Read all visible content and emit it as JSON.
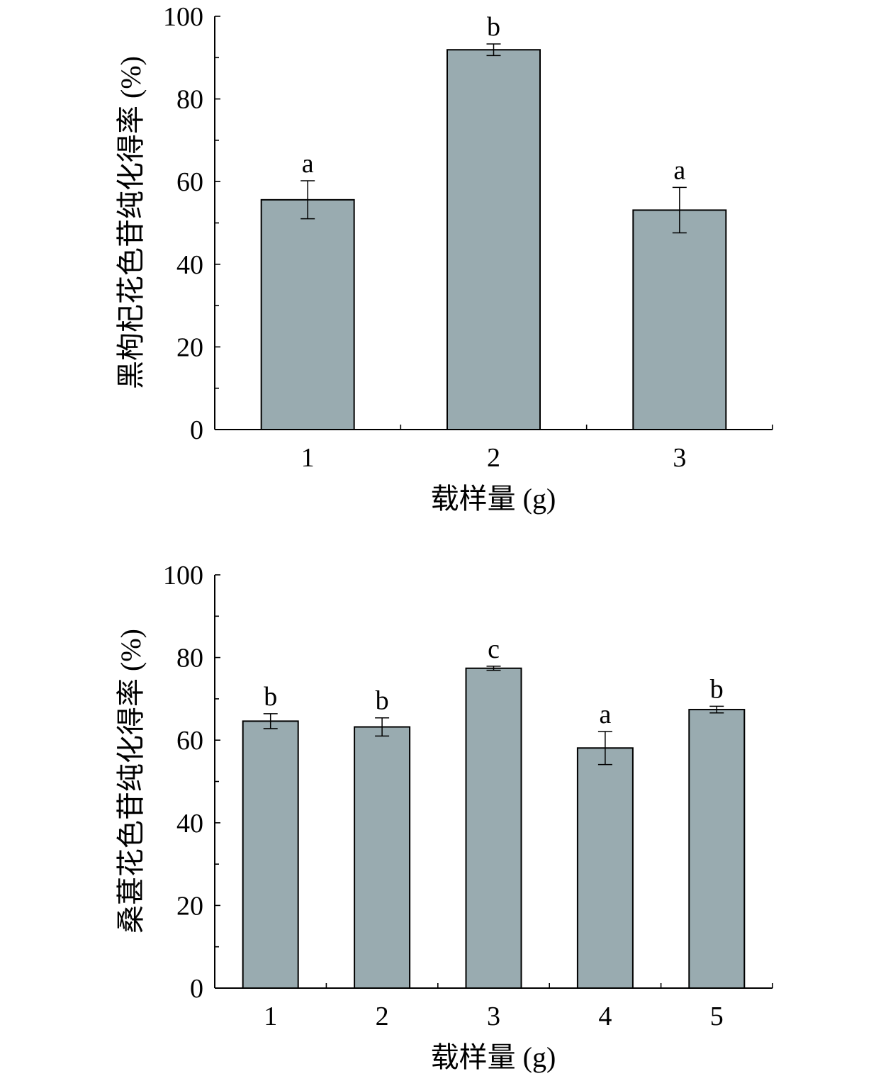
{
  "chart_data": [
    {
      "type": "bar",
      "categories": [
        "1",
        "2",
        "3"
      ],
      "values": [
        55.6,
        91.9,
        53.1
      ],
      "errors": [
        4.6,
        1.4,
        5.5
      ],
      "letters": [
        "a",
        "b",
        "a"
      ],
      "xlabel": "载样量 (g)",
      "ylabel": "黑枸杞花色苷纯化得率 (%)",
      "ylim": [
        0,
        100
      ],
      "yticks": [
        "0",
        "20",
        "40",
        "60",
        "80",
        "100"
      ],
      "bar_color": "#99abb0",
      "grid": false
    },
    {
      "type": "bar",
      "categories": [
        "1",
        "2",
        "3",
        "4",
        "5"
      ],
      "values": [
        64.6,
        63.2,
        77.4,
        58.1,
        67.4
      ],
      "errors": [
        1.8,
        2.2,
        0.5,
        4.0,
        0.8
      ],
      "letters": [
        "b",
        "b",
        "c",
        "a",
        "b"
      ],
      "xlabel": "载样量 (g)",
      "ylabel": "桑葚花色苷纯化得率 (%)",
      "ylim": [
        0,
        100
      ],
      "yticks": [
        "0",
        "20",
        "40",
        "60",
        "80",
        "100"
      ],
      "bar_color": "#99abb0",
      "grid": false
    }
  ]
}
